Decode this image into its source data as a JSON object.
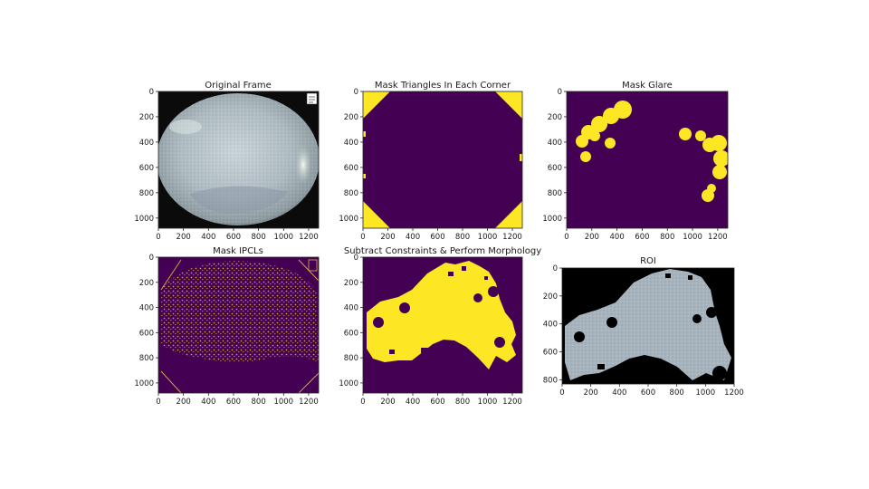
{
  "figure": {
    "colors": {
      "purple": "#440154",
      "yellow": "#fde725",
      "black": "#000000",
      "frame_light": "#c9d3d8",
      "frame_mid": "#9aa7ae"
    }
  },
  "chart_data": [
    {
      "type": "image",
      "title": "Original Frame",
      "xticks": [
        "0",
        "200",
        "400",
        "600",
        "800",
        "1000",
        "1200"
      ],
      "yticks": [
        "0",
        "200",
        "400",
        "600",
        "800",
        "1000"
      ],
      "xlim": [
        0,
        1280
      ],
      "ylim": [
        1080,
        0
      ],
      "content": "endoscopy-frame"
    },
    {
      "type": "image",
      "title": "Mask Triangles In Each Corner",
      "xticks": [
        "0",
        "200",
        "400",
        "600",
        "800",
        "1000",
        "1200"
      ],
      "yticks": [
        "0",
        "200",
        "400",
        "600",
        "800",
        "1000"
      ],
      "xlim": [
        0,
        1280
      ],
      "ylim": [
        1080,
        0
      ],
      "content": "corner-triangle-mask"
    },
    {
      "type": "image",
      "title": "Mask Glare",
      "xticks": [
        "0",
        "200",
        "400",
        "600",
        "800",
        "1000",
        "1200"
      ],
      "yticks": [
        "0",
        "200",
        "400",
        "600",
        "800",
        "1000"
      ],
      "xlim": [
        0,
        1280
      ],
      "ylim": [
        1080,
        0
      ],
      "content": "glare-mask"
    },
    {
      "type": "image",
      "title": "Mask IPCLs",
      "xticks": [
        "0",
        "200",
        "400",
        "600",
        "800",
        "1000",
        "1200"
      ],
      "yticks": [
        "0",
        "200",
        "400",
        "600",
        "800",
        "1000"
      ],
      "xlim": [
        0,
        1280
      ],
      "ylim": [
        1080,
        0
      ],
      "content": "ipcl-mask"
    },
    {
      "type": "image",
      "title": "Subtract Constraints & Perform Morphology",
      "xticks": [
        "0",
        "200",
        "400",
        "600",
        "800",
        "1000",
        "1200"
      ],
      "yticks": [
        "0",
        "200",
        "400",
        "600",
        "800",
        "1000"
      ],
      "xlim": [
        0,
        1280
      ],
      "ylim": [
        1080,
        0
      ],
      "content": "morphology-mask"
    },
    {
      "type": "image",
      "title": "ROI",
      "xticks": [
        "0",
        "200",
        "400",
        "600",
        "800",
        "1000",
        "1200"
      ],
      "yticks": [
        "0",
        "200",
        "400",
        "600",
        "800"
      ],
      "xlim": [
        0,
        1200
      ],
      "ylim": [
        830,
        0
      ],
      "content": "roi-crop"
    }
  ]
}
